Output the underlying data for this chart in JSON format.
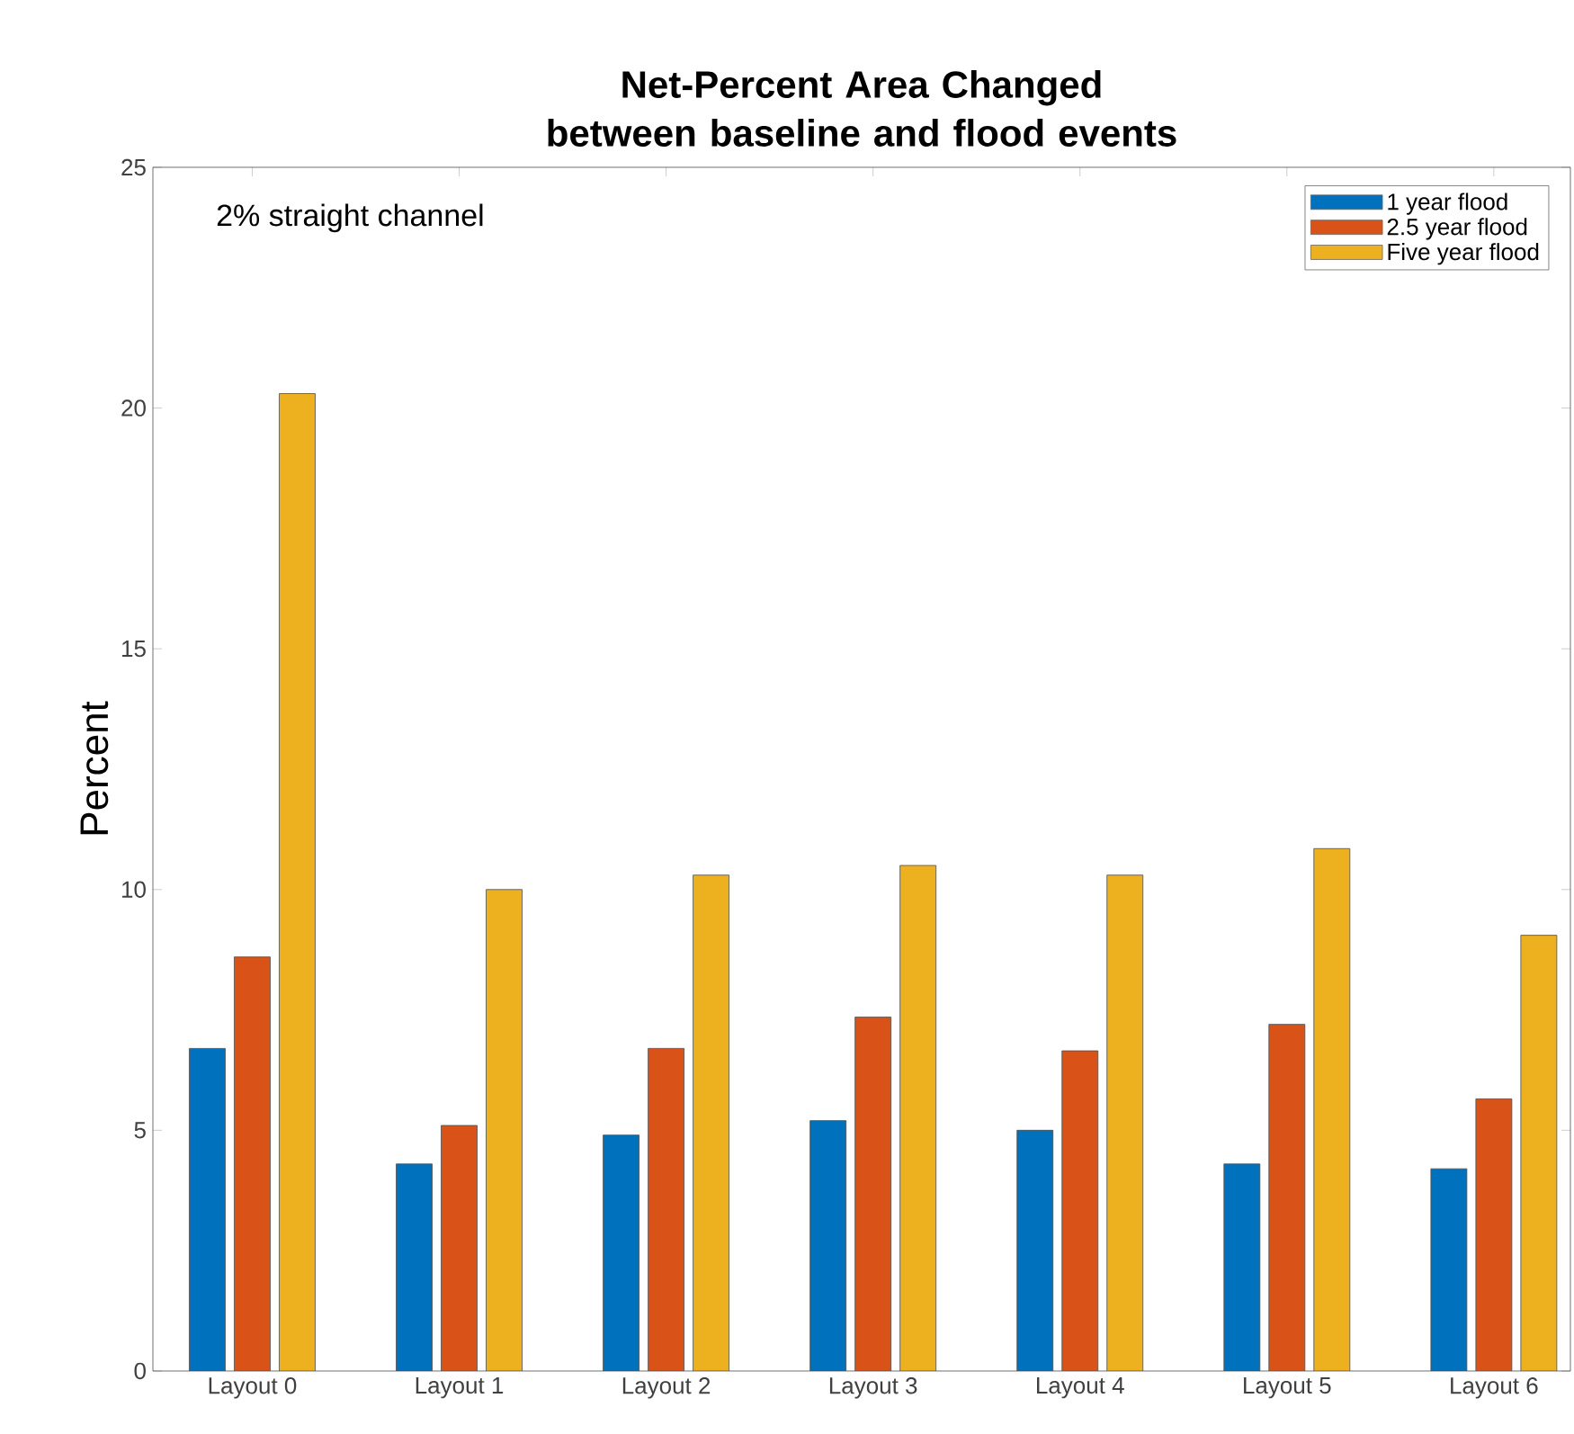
{
  "chart_data": {
    "type": "bar",
    "title": "Net-Percent Area Changed between baseline and flood events",
    "ylabel": "Percent",
    "categories": [
      "Layout 0",
      "Layout 1",
      "Layout 2",
      "Layout 3",
      "Layout 4",
      "Layout 5",
      "Layout 6"
    ],
    "series": [
      {
        "name": "1 year flood",
        "color": "#0072bd",
        "values": [
          6.7,
          4.3,
          4.9,
          5.2,
          5.0,
          4.3,
          4.2
        ]
      },
      {
        "name": "2.5 year flood",
        "color": "#d95319",
        "values": [
          8.6,
          5.1,
          6.7,
          7.35,
          6.65,
          7.2,
          5.65
        ]
      },
      {
        "name": "Five year flood",
        "color": "#edb120",
        "values": [
          20.3,
          10.0,
          10.3,
          10.5,
          10.3,
          10.85,
          9.05
        ]
      }
    ],
    "ylim": [
      0,
      25
    ],
    "yticks": [
      0,
      5,
      10,
      15,
      20,
      25
    ],
    "legend": "top right",
    "grid": false,
    "annotations": [
      "2% straight channel"
    ]
  }
}
